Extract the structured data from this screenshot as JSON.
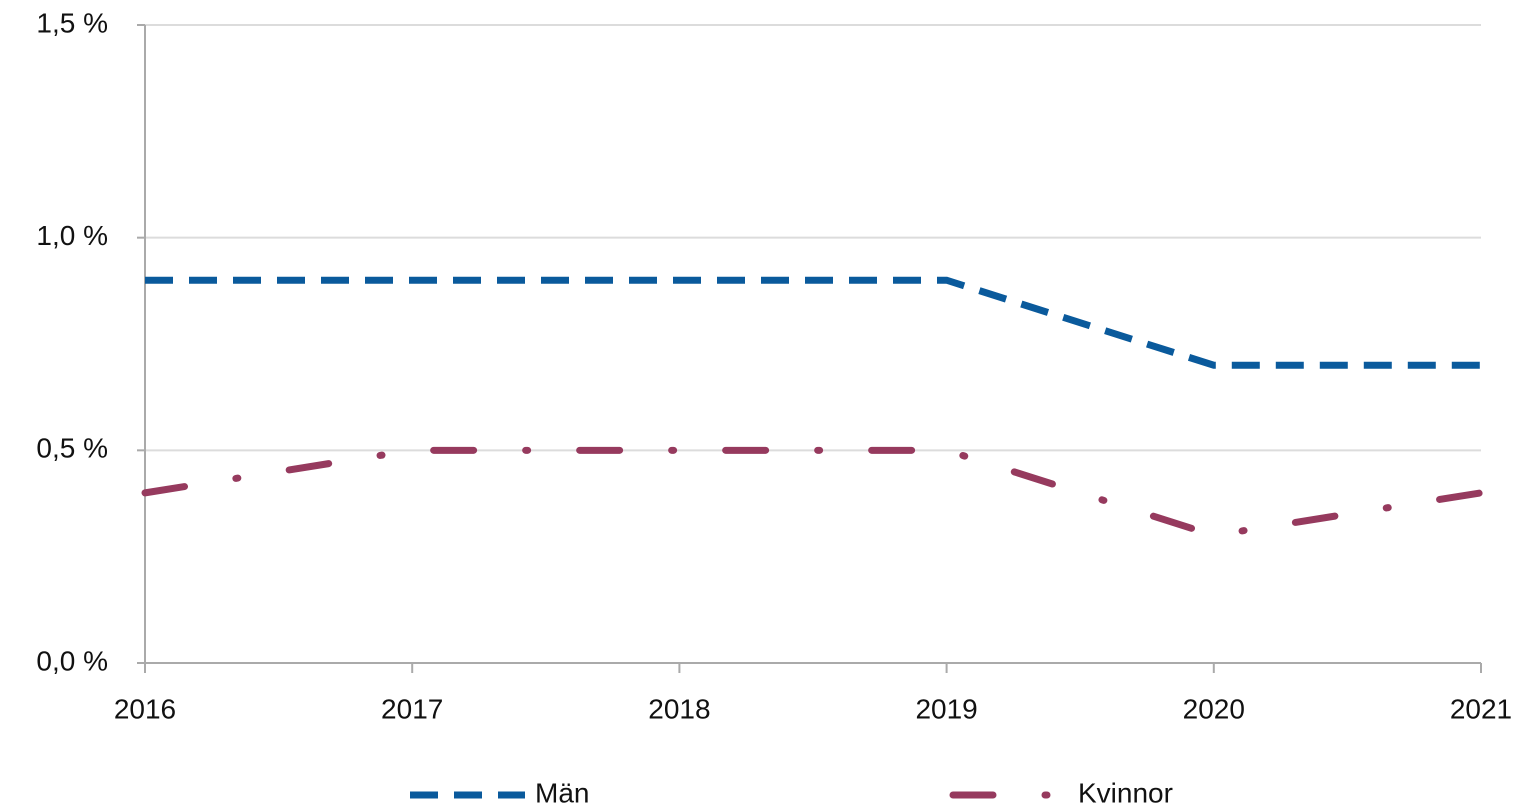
{
  "chart_data": {
    "type": "line",
    "x": [
      2016,
      2017,
      2018,
      2019,
      2020,
      2021
    ],
    "series": [
      {
        "name": "Män",
        "color": "#0a5a9c",
        "style": "dashed",
        "values": [
          0.9,
          0.9,
          0.9,
          0.9,
          0.7,
          0.7
        ]
      },
      {
        "name": "Kvinnor",
        "color": "#963a5e",
        "style": "dashdot",
        "values": [
          0.4,
          0.5,
          0.5,
          0.5,
          0.3,
          0.4
        ]
      }
    ],
    "xlim": [
      2016,
      2021
    ],
    "xticks": [
      2016,
      2017,
      2018,
      2019,
      2020,
      2021
    ],
    "ylim": [
      0,
      1.5
    ],
    "yticks": [
      {
        "value": 0,
        "label": "0,0 %"
      },
      {
        "value": 0.5,
        "label": "0,5 %"
      },
      {
        "value": 1,
        "label": "1,0 %"
      },
      {
        "value": 1.5,
        "label": "1,5 %"
      }
    ],
    "grid": true,
    "legend": "bottom"
  }
}
